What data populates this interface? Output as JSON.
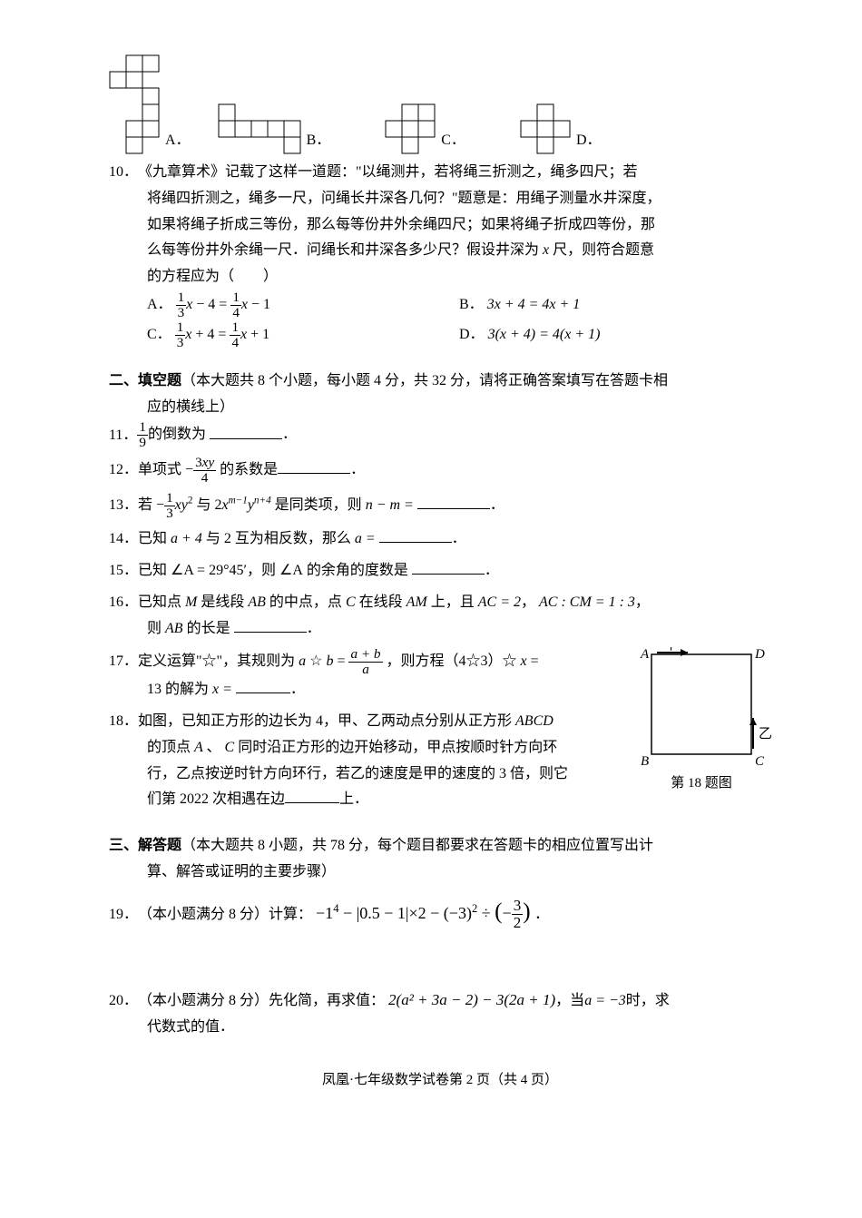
{
  "q9": {
    "options": {
      "A": "A．",
      "B": "B．",
      "C": "C．",
      "D": "D．"
    },
    "nets": {
      "cell": 18,
      "stroke": "#000000",
      "strokeWidth": 1,
      "A": [
        [
          1,
          0
        ],
        [
          2,
          0
        ],
        [
          0,
          1
        ],
        [
          1,
          1
        ],
        [
          2,
          2
        ],
        [
          2,
          3
        ],
        [
          1,
          4
        ],
        [
          2,
          4
        ],
        [
          1,
          5
        ]
      ],
      "A_w": 3,
      "A_h": 6,
      "B": [
        [
          0,
          0
        ],
        [
          0,
          1
        ],
        [
          1,
          1
        ],
        [
          2,
          1
        ],
        [
          3,
          1
        ],
        [
          4,
          1
        ],
        [
          4,
          2
        ]
      ],
      "B_w": 5,
      "B_h": 3,
      "C": [
        [
          1,
          0
        ],
        [
          2,
          0
        ],
        [
          0,
          1
        ],
        [
          1,
          1
        ],
        [
          2,
          1
        ],
        [
          1,
          2
        ]
      ],
      "C_w": 3,
      "C_h": 3,
      "D": [
        [
          1,
          0
        ],
        [
          0,
          1
        ],
        [
          1,
          1
        ],
        [
          2,
          1
        ],
        [
          1,
          2
        ]
      ],
      "D_w": 3,
      "D_h": 3
    }
  },
  "q10": {
    "num": "10．",
    "text_l1": "《九章算术》记载了这样一道题：\"以绳测井，若将绳三折测之，绳多四尺；若",
    "text_l2": "将绳四折测之，绳多一尺，问绳长井深各几何？\"题意是：用绳子测量水井深度，",
    "text_l3": "如果将绳子折成三等份，那么每等份井外余绳四尺；如果将绳子折成四等份，那",
    "text_l4": "么每等份井外余绳一尺．问绳长和井深各多少尺？假设井深为",
    "text_l4b": "尺，则符合题意",
    "text_l5": "的方程应为（　　）",
    "opt": {
      "A": "A．",
      "B": "B．",
      "C": "C．",
      "D": "D．"
    },
    "eqB": "3x + 4 = 4x + 1",
    "eqD": "3(x + 4) = 4(x + 1)"
  },
  "section2": {
    "title": "二、填空题",
    "desc": "（本大题共 8 个小题，每小题 4 分，共 32 分，请将正确答案填写在答题卡相",
    "desc2": "应的横线上）"
  },
  "q11": {
    "num": "11．",
    "tail": "的倒数为"
  },
  "q12": {
    "num": "12．",
    "lead": "单项式",
    "tail": "的系数是"
  },
  "q13": {
    "num": "13．",
    "lead": "若",
    "mid": "与",
    "tail": "是同类项，则"
  },
  "q14": {
    "num": "14．",
    "lead": "已知",
    "mid": "与 2 互为相反数，那么"
  },
  "q15": {
    "num": "15．",
    "lead": "已知",
    "mid": "，则",
    "tail": "的余角的度数是",
    "angle": "∠A = 29°45′",
    "angleA": "∠A"
  },
  "q16": {
    "num": "16．",
    "l1a": "已知点",
    "l1b": "是线段",
    "l1c": "的中点，点",
    "l1d": "在线段",
    "l1e": "上，且",
    "ac2": "AC = 2",
    "ratio": "AC : CM = 1 : 3",
    "l2a": "则",
    "l2b": "的长是"
  },
  "q17": {
    "num": "17．",
    "l1a": "定义运算\"☆\"，其规则为",
    "l1b": "，则方程（4☆3）☆",
    "l2a": "13 的解为"
  },
  "q18": {
    "num": "18．",
    "l1": "如图，已知正方形的边长为 4，甲、乙两动点分别从正方形",
    "abcd": "ABCD",
    "l2a": "的顶点",
    "l2b": "、",
    "l2c": "同时沿正方形的边开始移动，甲点按顺时针方向环",
    "l3": "行，乙点按逆时针方向环行，若乙的速度是甲的速度的 3 倍，则它",
    "l4a": "们第 2022 次相遇在边",
    "l4b": "上．",
    "caption": "第 18 题图",
    "fig": {
      "size": 110,
      "stroke": "#000000",
      "strokeWidth": 1.5,
      "A": "A",
      "B": "B",
      "C": "C",
      "D": "D",
      "jia": "甲",
      "yi": "乙",
      "label_font": 15
    }
  },
  "section3": {
    "title": "三、解答题",
    "desc": "（本大题共 8 小题，共 78 分，每个题目都要求在答题卡的相应位置写出计",
    "desc2": "算、解答或证明的主要步骤）"
  },
  "q19": {
    "num": "19．",
    "text": "（本小题满分 8 分）计算："
  },
  "q20": {
    "num": "20．",
    "text1": "（本小题满分 8 分）先化简，再求值：",
    "expr": "2(a² + 3a − 2) − 3(2a + 1)",
    "text2": "，当",
    "aval": "a = −3",
    "text3": "时，求",
    "text4": "代数式的值．"
  },
  "footer": "凤凰·七年级数学试卷第 2 页（共 4 页）"
}
